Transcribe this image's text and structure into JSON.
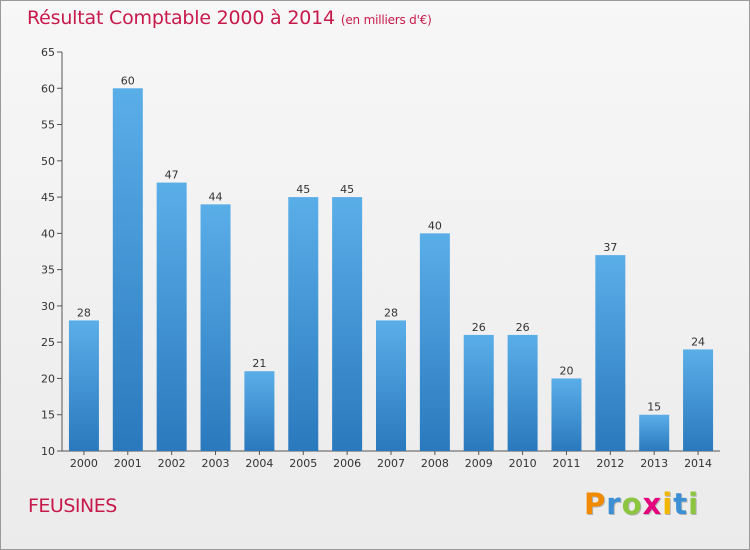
{
  "header": {
    "title": "Résultat Comptable 2000 à 2014",
    "subtitle": "(en milliers d'€)"
  },
  "footer": {
    "town": "FEUSINES",
    "logo_text": "Proxiti"
  },
  "colors": {
    "title": "#c8194b",
    "bar_top": "#5aaee8",
    "bar_bottom": "#2a79bd",
    "axis": "#555555"
  },
  "chart_data": {
    "type": "bar",
    "title": "Résultat Comptable 2000 à 2014",
    "subtitle": "(en milliers d'€)",
    "categories": [
      "2000",
      "2001",
      "2002",
      "2003",
      "2004",
      "2005",
      "2006",
      "2007",
      "2008",
      "2009",
      "2010",
      "2011",
      "2012",
      "2013",
      "2014"
    ],
    "values": [
      28,
      60,
      47,
      44,
      21,
      45,
      45,
      28,
      40,
      26,
      26,
      20,
      37,
      15,
      24
    ],
    "ylim": [
      10,
      65
    ],
    "yticks": [
      10,
      15,
      20,
      25,
      30,
      35,
      40,
      45,
      50,
      55,
      60,
      65
    ],
    "xlabel": "",
    "ylabel": "",
    "grid": false,
    "data_labels": true
  }
}
